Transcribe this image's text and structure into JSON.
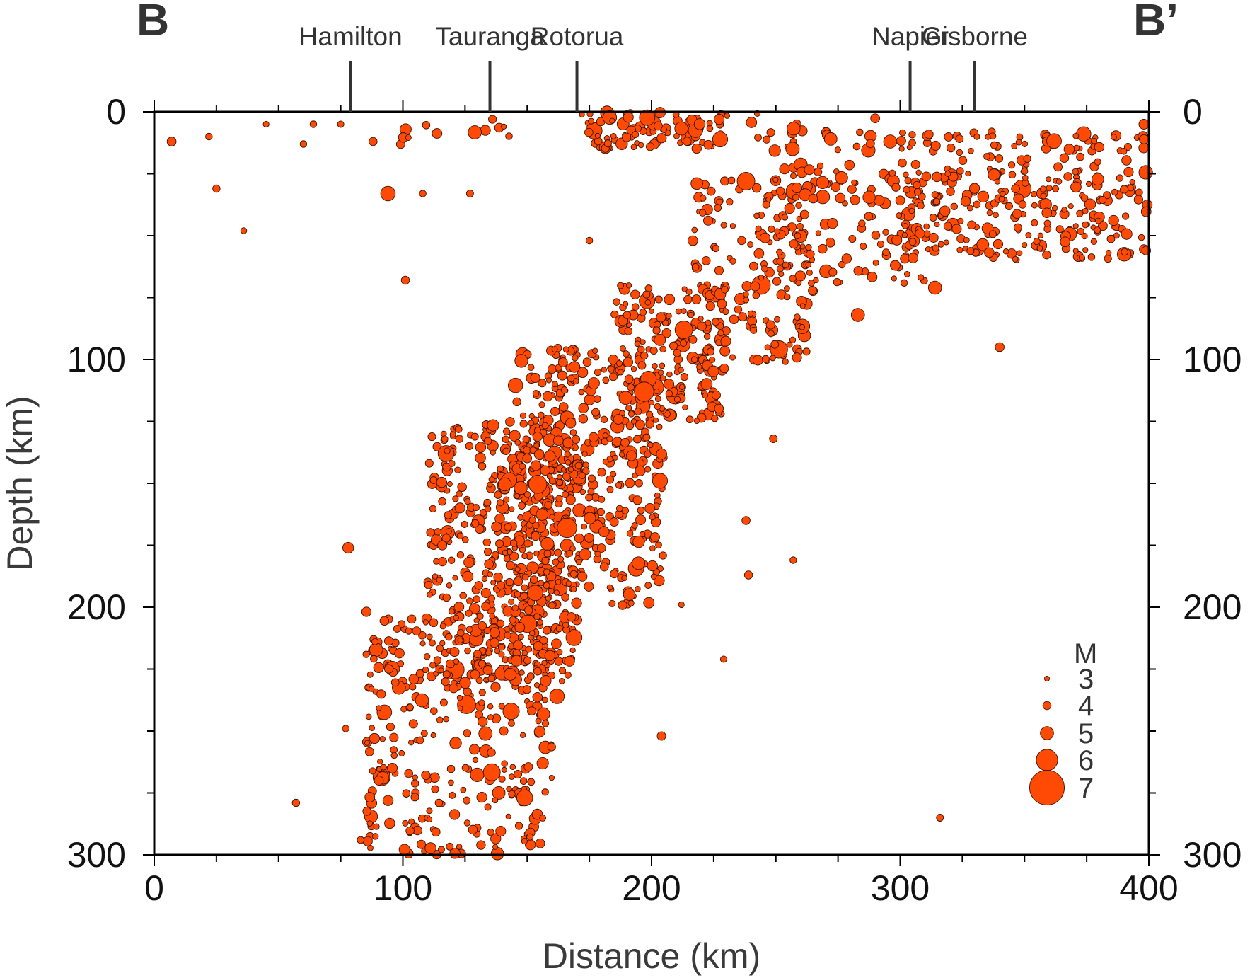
{
  "chart_data": {
    "type": "scatter",
    "profile_start_label": "B",
    "profile_end_label": "B’",
    "xlabel": "Distance (km)",
    "ylabel": "Depth (km)",
    "xlim": [
      0,
      400
    ],
    "ylim": [
      0,
      300
    ],
    "y_inverted": true,
    "x_ticks": [
      "0",
      "100",
      "200",
      "300",
      "400"
    ],
    "y_ticks": [
      "0",
      "100",
      "200",
      "300"
    ],
    "grid": false,
    "legend_position": "bottom-right",
    "marker_color": "#ff4a06",
    "marker_edge_color": "#3a1200",
    "towns": [
      {
        "name": "Hamilton",
        "distance": 79
      },
      {
        "name": "Tauranga",
        "distance": 135
      },
      {
        "name": "Rotorua",
        "distance": 170
      },
      {
        "name": "Napier",
        "distance": 304
      },
      {
        "name": "Gisborne",
        "distance": 330
      }
    ],
    "legend": {
      "title": "M",
      "magnitudes": [
        3,
        4,
        5,
        6,
        7
      ]
    },
    "series": [
      {
        "notable_points": [
          {
            "distance": 7,
            "depth": 12,
            "magnitude": 4.2
          },
          {
            "distance": 22,
            "depth": 10,
            "magnitude": 3.6
          },
          {
            "distance": 25,
            "depth": 31,
            "magnitude": 3.8
          },
          {
            "distance": 36,
            "depth": 48,
            "magnitude": 3.4
          },
          {
            "distance": 45,
            "depth": 5,
            "magnitude": 3.3
          },
          {
            "distance": 60,
            "depth": 13,
            "magnitude": 3.6
          },
          {
            "distance": 64,
            "depth": 5,
            "magnitude": 3.6
          },
          {
            "distance": 75,
            "depth": 5,
            "magnitude": 3.5
          },
          {
            "distance": 88,
            "depth": 12,
            "magnitude": 4.0
          },
          {
            "distance": 94,
            "depth": 33,
            "magnitude": 5.2
          },
          {
            "distance": 108,
            "depth": 33,
            "magnitude": 3.6
          },
          {
            "distance": 127,
            "depth": 33,
            "magnitude": 3.7
          },
          {
            "distance": 101,
            "depth": 68,
            "magnitude": 4.0
          },
          {
            "distance": 175,
            "depth": 52,
            "magnitude": 3.6
          },
          {
            "distance": 78,
            "depth": 176,
            "magnitude": 4.6
          },
          {
            "distance": 57,
            "depth": 279,
            "magnitude": 3.8
          },
          {
            "distance": 83,
            "depth": 294,
            "magnitude": 3.7
          },
          {
            "distance": 77,
            "depth": 249,
            "magnitude": 3.6
          },
          {
            "distance": 204,
            "depth": 252,
            "magnitude": 4.1
          },
          {
            "distance": 229,
            "depth": 221,
            "magnitude": 3.5
          },
          {
            "distance": 212,
            "depth": 199,
            "magnitude": 3.3
          },
          {
            "distance": 249,
            "depth": 132,
            "magnitude": 3.9
          },
          {
            "distance": 257,
            "depth": 181,
            "magnitude": 3.6
          },
          {
            "distance": 238,
            "depth": 165,
            "magnitude": 4.0
          },
          {
            "distance": 239,
            "depth": 187,
            "magnitude": 4.0
          },
          {
            "distance": 340,
            "depth": 95,
            "magnitude": 4.2
          },
          {
            "distance": 316,
            "depth": 285,
            "magnitude": 3.7
          },
          {
            "distance": 314,
            "depth": 71,
            "magnitude": 5.0
          },
          {
            "distance": 296,
            "depth": 12,
            "magnitude": 5.0
          },
          {
            "distance": 398,
            "depth": 5,
            "magnitude": 4.4
          },
          {
            "distance": 238,
            "depth": 28,
            "magnitude": 5.6
          },
          {
            "distance": 213,
            "depth": 88,
            "magnitude": 5.6
          },
          {
            "distance": 166,
            "depth": 168,
            "magnitude": 5.8
          },
          {
            "distance": 162,
            "depth": 236,
            "magnitude": 5.2
          },
          {
            "distance": 149,
            "depth": 277,
            "magnitude": 5.4
          },
          {
            "distance": 197,
            "depth": 113,
            "magnitude": 5.8
          },
          {
            "distance": 283,
            "depth": 82,
            "magnitude": 5.0
          },
          {
            "distance": 169,
            "depth": 103,
            "magnitude": 4.6
          },
          {
            "distance": 265,
            "depth": 35,
            "magnitude": 4.2
          },
          {
            "distance": 298,
            "depth": 62,
            "magnitude": 4.4
          }
        ],
        "clusters": [
          {
            "distance_range": [
              98,
              115
            ],
            "depth_range": [
              0,
              15
            ],
            "count": 6
          },
          {
            "distance_range": [
              126,
              143
            ],
            "depth_range": [
              0,
              12
            ],
            "count": 6
          },
          {
            "distance_range": [
              172,
              232
            ],
            "depth_range": [
              0,
              15
            ],
            "count": 90
          },
          {
            "distance_range": [
              240,
              290
            ],
            "depth_range": [
              0,
              16
            ],
            "count": 24
          },
          {
            "distance_range": [
              300,
              400
            ],
            "depth_range": [
              8,
              60
            ],
            "count": 300
          },
          {
            "distance_range": [
              250,
              320
            ],
            "depth_range": [
              20,
              70
            ],
            "count": 120
          },
          {
            "distance_range": [
              215,
              265
            ],
            "depth_range": [
              25,
              105
            ],
            "count": 170
          },
          {
            "distance_range": [
              185,
              230
            ],
            "depth_range": [
              70,
              125
            ],
            "count": 180
          },
          {
            "distance_range": [
              145,
              205
            ],
            "depth_range": [
              95,
              200
            ],
            "count": 420
          },
          {
            "distance_range": [
              110,
              170
            ],
            "depth_range": [
              125,
              230
            ],
            "count": 480
          },
          {
            "distance_range": [
              85,
              160
            ],
            "depth_range": [
              200,
              300
            ],
            "count": 330
          }
        ]
      }
    ]
  }
}
